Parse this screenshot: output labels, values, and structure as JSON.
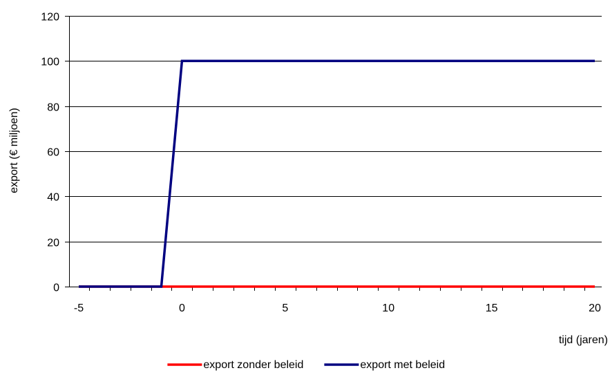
{
  "chart_data": {
    "type": "line",
    "title": "",
    "xlabel": "tijd (jaren)",
    "ylabel": "export (€ miljoen)",
    "xlim": [
      -5,
      20
    ],
    "ylim": [
      0,
      120
    ],
    "x_ticks": [
      -5,
      0,
      5,
      10,
      15,
      20
    ],
    "y_ticks": [
      0,
      20,
      40,
      60,
      80,
      100,
      120
    ],
    "grid": "horizontal",
    "legend": "bottom",
    "series": [
      {
        "name": "export zonder beleid",
        "color": "#ff0000",
        "points": [
          [
            -5,
            0
          ],
          [
            20,
            0
          ]
        ]
      },
      {
        "name": "export met beleid",
        "color": "#000080",
        "points": [
          [
            -5,
            0
          ],
          [
            -1,
            0
          ],
          [
            0,
            100
          ],
          [
            20,
            100
          ]
        ]
      }
    ]
  }
}
